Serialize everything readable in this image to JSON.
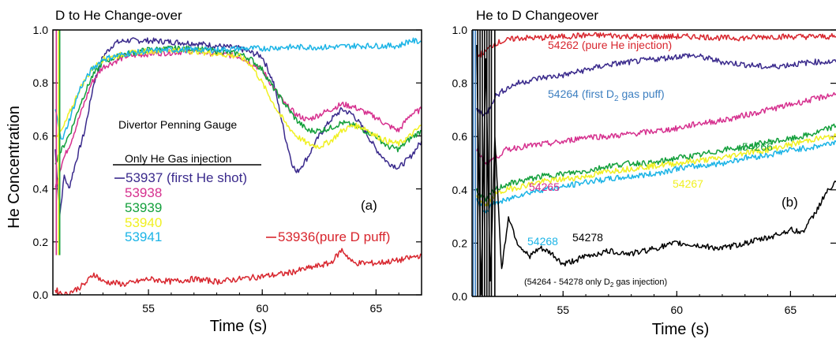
{
  "colors": {
    "purple": "#3a2a8c",
    "magenta": "#d6318f",
    "green": "#14a03c",
    "yellow": "#f0f022",
    "cyan": "#1cb4e6",
    "red": "#d8262e",
    "blue": "#3d7fc0",
    "black": "#000000"
  },
  "chart_data": [
    {
      "type": "line",
      "title": "D to He Change-over",
      "xlabel": "Time (s)",
      "ylabel": "He Concentration",
      "xlim": [
        50.8,
        67
      ],
      "ylim": [
        0,
        1.0
      ],
      "xticks": [
        55,
        60,
        65
      ],
      "yticks": [
        0.0,
        0.2,
        0.4,
        0.6,
        0.8,
        1.0
      ],
      "ytick_labels": [
        "0.0",
        "0.2",
        "0.4",
        "0.6",
        "0.8",
        "1.0"
      ],
      "panel_label": "(a)",
      "annotations": [
        {
          "text": "Divertor Penning Gauge",
          "x": 51.9,
          "y": 0.645
        },
        {
          "text": "Only He Gas injection",
          "x": 51.6,
          "y": 0.545
        }
      ],
      "series": [
        {
          "name": "53937 (first He shot)",
          "color": "#3a2a8c",
          "x": [
            50.9,
            51.1,
            51.3,
            51.5,
            51.8,
            52.2,
            52.6,
            53.0,
            53.5,
            54.0,
            55.0,
            56.0,
            57.0,
            58.0,
            59.0,
            60.0,
            60.5,
            61.0,
            61.3,
            61.5,
            62.0,
            62.5,
            63.0,
            63.5,
            64.0,
            64.5,
            65.0,
            65.5,
            66.0,
            66.5,
            67.0
          ],
          "y": [
            0.55,
            0.3,
            0.45,
            0.4,
            0.5,
            0.62,
            0.8,
            0.9,
            0.95,
            0.96,
            0.96,
            0.955,
            0.95,
            0.94,
            0.93,
            0.9,
            0.8,
            0.6,
            0.5,
            0.46,
            0.52,
            0.6,
            0.66,
            0.7,
            0.68,
            0.62,
            0.55,
            0.5,
            0.48,
            0.52,
            0.58
          ]
        },
        {
          "name": "53938",
          "color": "#d6318f",
          "x": [
            50.9,
            51.2,
            51.6,
            52.0,
            52.5,
            53.0,
            54.0,
            55.0,
            56.0,
            57.0,
            58.0,
            59.0,
            60.0,
            60.5,
            61.0,
            61.5,
            62.0,
            62.5,
            63.0,
            63.5,
            64.0,
            64.5,
            65.0,
            65.5,
            66.0,
            66.5,
            67.0
          ],
          "y": [
            0.4,
            0.5,
            0.58,
            0.68,
            0.8,
            0.86,
            0.9,
            0.91,
            0.915,
            0.92,
            0.91,
            0.9,
            0.85,
            0.78,
            0.72,
            0.68,
            0.66,
            0.68,
            0.7,
            0.72,
            0.71,
            0.69,
            0.67,
            0.64,
            0.62,
            0.68,
            0.7
          ]
        },
        {
          "name": "53939",
          "color": "#14a03c",
          "x": [
            50.9,
            51.2,
            51.6,
            52.0,
            52.5,
            53.0,
            54.0,
            55.0,
            56.0,
            57.0,
            58.0,
            59.0,
            59.5,
            60.0,
            60.5,
            61.0,
            61.5,
            62.0,
            62.5,
            63.0,
            63.5,
            64.0,
            64.5,
            65.0,
            65.5,
            66.0,
            66.5,
            67.0
          ],
          "y": [
            0.5,
            0.55,
            0.62,
            0.72,
            0.82,
            0.88,
            0.91,
            0.925,
            0.93,
            0.93,
            0.92,
            0.91,
            0.89,
            0.85,
            0.78,
            0.72,
            0.66,
            0.62,
            0.62,
            0.63,
            0.65,
            0.64,
            0.62,
            0.6,
            0.56,
            0.55,
            0.59,
            0.62
          ]
        },
        {
          "name": "53940",
          "color": "#f0f022",
          "x": [
            50.9,
            51.2,
            51.6,
            52.0,
            52.5,
            53.0,
            54.0,
            55.0,
            56.0,
            57.0,
            58.0,
            59.0,
            59.5,
            60.0,
            60.5,
            61.0,
            61.5,
            62.0,
            62.5,
            63.0,
            63.5,
            64.0,
            64.5,
            65.0,
            65.5,
            66.0,
            66.5,
            67.0
          ],
          "y": [
            0.6,
            0.62,
            0.7,
            0.78,
            0.85,
            0.89,
            0.91,
            0.92,
            0.925,
            0.92,
            0.91,
            0.9,
            0.87,
            0.8,
            0.72,
            0.65,
            0.6,
            0.57,
            0.56,
            0.58,
            0.62,
            0.64,
            0.63,
            0.6,
            0.58,
            0.57,
            0.6,
            0.64
          ]
        },
        {
          "name": "53941",
          "color": "#1cb4e6",
          "x": [
            50.9,
            51.2,
            51.6,
            52.0,
            52.5,
            53.0,
            54.0,
            55.0,
            56.0,
            57.0,
            58.0,
            59.0,
            60.0,
            61.0,
            62.0,
            63.0,
            64.0,
            65.0,
            66.0,
            66.5,
            67.0
          ],
          "y": [
            0.7,
            0.58,
            0.68,
            0.78,
            0.85,
            0.89,
            0.91,
            0.92,
            0.925,
            0.925,
            0.925,
            0.93,
            0.93,
            0.935,
            0.935,
            0.935,
            0.94,
            0.94,
            0.94,
            0.96,
            0.955
          ]
        },
        {
          "name": "53936(pure D puff)",
          "color": "#d8262e",
          "x": [
            50.9,
            51.3,
            51.8,
            52.2,
            52.6,
            53.0,
            54.0,
            55.0,
            56.0,
            57.0,
            58.0,
            59.0,
            60.0,
            61.0,
            62.0,
            63.0,
            63.5,
            64.0,
            65.0,
            66.0,
            66.5,
            67.0
          ],
          "y": [
            0.02,
            0.0,
            0.02,
            0.04,
            0.08,
            0.05,
            0.04,
            0.06,
            0.05,
            0.06,
            0.05,
            0.06,
            0.07,
            0.08,
            0.1,
            0.12,
            0.17,
            0.12,
            0.12,
            0.13,
            0.14,
            0.15
          ]
        }
      ]
    },
    {
      "type": "line",
      "title": "He to D Changeover",
      "xlabel": "Time (s)",
      "ylabel": "",
      "xlim": [
        51,
        67
      ],
      "ylim": [
        0,
        1.0
      ],
      "xticks": [
        55,
        60,
        65
      ],
      "yticks": [
        0.0,
        0.2,
        0.4,
        0.6,
        0.8,
        1.0
      ],
      "ytick_labels": [
        "0.0",
        "0.2",
        "0.4",
        "0.6",
        "0.8",
        "1.0"
      ],
      "panel_label": "(b)",
      "annotations": [
        {
          "text": "(54264 - 54278 only D",
          "sub": "2",
          "text2": " gas injection)",
          "x": 54.2,
          "y": 0.045
        }
      ],
      "series": [
        {
          "name": "54262 (pure He injection)",
          "label_prefix": "54262 (pure He injection)",
          "color": "#d8262e",
          "x": [
            51.2,
            51.6,
            52.0,
            52.5,
            53.0,
            54.0,
            55.0,
            56.0,
            57.0,
            58.0,
            59.0,
            60.0,
            61.0,
            62.0,
            63.0,
            64.0,
            65.0,
            66.0,
            67.0
          ],
          "y": [
            0.9,
            0.92,
            0.95,
            0.96,
            0.97,
            0.97,
            0.975,
            0.98,
            0.98,
            0.975,
            0.975,
            0.975,
            0.975,
            0.97,
            0.97,
            0.975,
            0.975,
            0.975,
            0.975
          ]
        },
        {
          "name": "54264 (first D2 gas puff)",
          "label_prefix": "54264 (first D",
          "label_sub": "2",
          "label_suffix": "  gas puff)",
          "color": "#3a2a8c",
          "x": [
            51.2,
            51.6,
            52.0,
            52.5,
            53.0,
            54.0,
            55.0,
            56.0,
            57.0,
            58.0,
            59.0,
            60.0,
            60.5,
            61.0,
            62.0,
            63.0,
            64.0,
            65.0,
            66.0,
            67.0
          ],
          "y": [
            0.7,
            0.68,
            0.75,
            0.78,
            0.8,
            0.82,
            0.83,
            0.85,
            0.87,
            0.88,
            0.89,
            0.9,
            0.905,
            0.9,
            0.88,
            0.87,
            0.86,
            0.87,
            0.88,
            0.88
          ]
        },
        {
          "name": "54265",
          "color": "#d6318f",
          "x": [
            51.2,
            51.6,
            52.0,
            52.5,
            53.0,
            54.0,
            55.0,
            56.0,
            57.0,
            58.0,
            59.0,
            60.0,
            61.0,
            62.0,
            63.0,
            64.0,
            65.0,
            66.0,
            67.0
          ],
          "y": [
            0.55,
            0.5,
            0.52,
            0.55,
            0.56,
            0.57,
            0.58,
            0.6,
            0.6,
            0.61,
            0.62,
            0.63,
            0.65,
            0.66,
            0.68,
            0.7,
            0.72,
            0.74,
            0.76
          ]
        },
        {
          "name": "54266",
          "color": "#14a03c",
          "x": [
            51.2,
            51.6,
            52.0,
            52.5,
            53.0,
            54.0,
            55.0,
            56.0,
            57.0,
            58.0,
            59.0,
            60.0,
            61.0,
            62.0,
            63.0,
            64.0,
            65.0,
            66.0,
            67.0
          ],
          "y": [
            0.4,
            0.36,
            0.4,
            0.42,
            0.43,
            0.45,
            0.46,
            0.47,
            0.49,
            0.5,
            0.5,
            0.52,
            0.53,
            0.55,
            0.56,
            0.58,
            0.59,
            0.61,
            0.64
          ]
        },
        {
          "name": "54267",
          "color": "#f0f022",
          "x": [
            51.2,
            51.6,
            52.0,
            52.5,
            53.0,
            54.0,
            55.0,
            56.0,
            57.0,
            58.0,
            59.0,
            60.0,
            61.0,
            62.0,
            63.0,
            64.0,
            65.0,
            66.0,
            67.0
          ],
          "y": [
            0.38,
            0.34,
            0.38,
            0.4,
            0.41,
            0.43,
            0.44,
            0.45,
            0.47,
            0.48,
            0.49,
            0.5,
            0.51,
            0.52,
            0.54,
            0.55,
            0.57,
            0.59,
            0.6
          ]
        },
        {
          "name": "54268",
          "color": "#1cb4e6",
          "x": [
            51.2,
            51.6,
            52.0,
            52.5,
            53.0,
            54.0,
            55.0,
            56.0,
            57.0,
            58.0,
            59.0,
            60.0,
            61.0,
            62.0,
            63.0,
            64.0,
            65.0,
            66.0,
            67.0
          ],
          "y": [
            0.36,
            0.32,
            0.35,
            0.36,
            0.38,
            0.4,
            0.41,
            0.43,
            0.44,
            0.45,
            0.46,
            0.48,
            0.49,
            0.5,
            0.52,
            0.53,
            0.55,
            0.56,
            0.58
          ]
        },
        {
          "name": "54278",
          "color": "#000000",
          "x": [
            51.2,
            51.4,
            51.6,
            51.8,
            52.0,
            52.3,
            52.6,
            53.0,
            53.5,
            54.0,
            54.5,
            55.0,
            56.0,
            57.0,
            58.0,
            59.0,
            60.0,
            61.0,
            62.0,
            63.0,
            64.0,
            65.0,
            65.5,
            66.0,
            66.5,
            67.0
          ],
          "y": [
            0.95,
            0.0,
            0.9,
            0.05,
            0.6,
            0.1,
            0.3,
            0.2,
            0.15,
            0.18,
            0.16,
            0.12,
            0.15,
            0.17,
            0.16,
            0.18,
            0.2,
            0.19,
            0.18,
            0.2,
            0.22,
            0.25,
            0.24,
            0.3,
            0.38,
            0.43
          ]
        }
      ]
    }
  ]
}
